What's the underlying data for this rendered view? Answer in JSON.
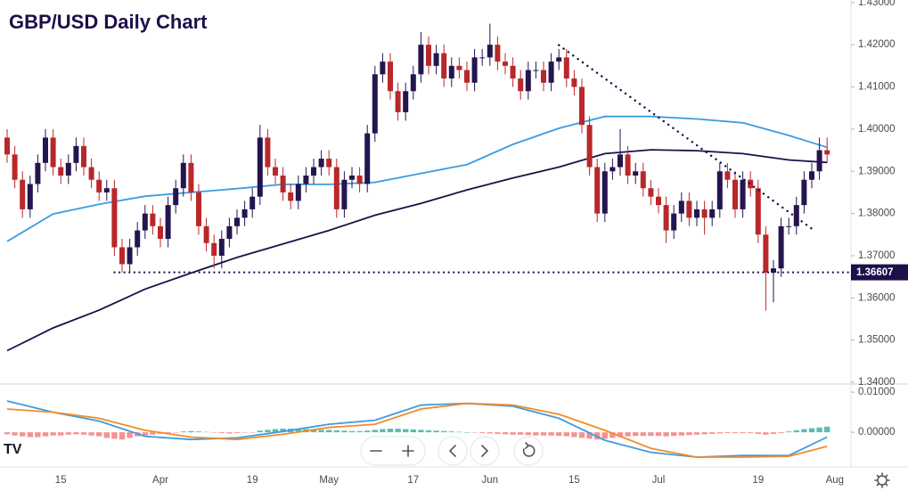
{
  "chart_data": [
    {
      "type": "candlestick",
      "title": "GBP/USD Daily Chart",
      "categories": [
        null,
        null,
        null,
        null,
        null,
        null,
        null,
        "15",
        null,
        null,
        null,
        null,
        null,
        null,
        null,
        null,
        null,
        null,
        null,
        null,
        "Apr",
        null,
        null,
        null,
        null,
        null,
        null,
        null,
        null,
        null,
        null,
        null,
        "19",
        null,
        null,
        null,
        null,
        null,
        null,
        null,
        null,
        null,
        "May",
        null,
        null,
        null,
        null,
        null,
        null,
        null,
        null,
        null,
        null,
        "17",
        null,
        null,
        null,
        null,
        null,
        null,
        null,
        null,
        null,
        "Jun",
        null,
        null,
        null,
        null,
        null,
        null,
        null,
        null,
        null,
        null,
        "15",
        null,
        null,
        null,
        null,
        null,
        null,
        null,
        null,
        null,
        null,
        "Jul",
        null,
        null,
        null,
        null,
        null,
        null,
        null,
        null,
        null,
        null,
        null,
        null,
        "19",
        null,
        null,
        null,
        null,
        null,
        null,
        null,
        null,
        null,
        "Aug"
      ],
      "open": [
        1.398,
        1.394,
        1.388,
        1.381,
        1.387,
        1.392,
        1.398,
        1.391,
        1.389,
        1.392,
        1.396,
        1.391,
        1.388,
        1.385,
        1.386,
        1.372,
        1.368,
        1.372,
        1.376,
        1.38,
        1.377,
        1.374,
        1.382,
        1.386,
        1.392,
        1.385,
        1.377,
        1.373,
        1.37,
        1.374,
        1.377,
        1.379,
        1.381,
        1.384,
        1.398,
        1.391,
        1.389,
        1.385,
        1.383,
        1.387,
        1.389,
        1.391,
        1.393,
        1.391,
        1.381,
        1.388,
        1.389,
        1.387,
        1.399,
        1.413,
        1.416,
        1.409,
        1.404,
        1.409,
        1.413,
        1.42,
        1.415,
        1.418,
        1.412,
        1.415,
        1.414,
        1.411,
        1.417,
        1.417,
        1.42,
        1.416,
        1.415,
        1.412,
        1.409,
        1.414,
        1.414,
        1.411,
        1.416,
        1.417,
        1.412,
        1.41,
        1.401,
        1.391,
        1.38,
        1.39,
        1.391,
        1.394,
        1.389,
        1.39,
        1.386,
        1.384,
        1.382,
        1.376,
        1.38,
        1.383,
        1.379,
        1.381,
        1.379,
        1.381,
        1.39,
        1.388,
        1.381,
        1.388,
        1.386,
        1.375,
        1.366,
        1.367,
        1.377,
        1.377,
        1.382,
        1.388,
        1.39,
        1.395,
        null
      ],
      "high": [
        1.4,
        1.396,
        1.39,
        1.389,
        1.394,
        1.4,
        1.4,
        1.393,
        1.394,
        1.398,
        1.398,
        1.393,
        1.39,
        1.388,
        1.388,
        1.374,
        1.374,
        1.378,
        1.382,
        1.382,
        1.379,
        1.384,
        1.388,
        1.394,
        1.394,
        1.387,
        1.379,
        1.375,
        1.376,
        1.379,
        1.381,
        1.383,
        1.386,
        1.401,
        1.4,
        1.393,
        1.391,
        1.387,
        1.389,
        1.391,
        1.393,
        1.395,
        1.395,
        1.393,
        1.39,
        1.391,
        1.391,
        1.401,
        1.415,
        1.418,
        1.418,
        1.411,
        1.411,
        1.415,
        1.423,
        1.422,
        1.42,
        1.42,
        1.417,
        1.417,
        1.416,
        1.419,
        1.419,
        1.425,
        1.422,
        1.418,
        1.417,
        1.414,
        1.416,
        1.416,
        1.416,
        1.418,
        1.419,
        1.419,
        1.414,
        1.412,
        1.403,
        1.393,
        1.392,
        1.393,
        1.4,
        1.396,
        1.392,
        1.392,
        1.388,
        1.386,
        1.384,
        1.382,
        1.385,
        1.385,
        1.383,
        1.383,
        1.383,
        1.392,
        1.392,
        1.39,
        1.39,
        1.39,
        1.388,
        1.377,
        1.369,
        1.379,
        1.379,
        1.384,
        1.39,
        1.392,
        1.398,
        1.398,
        null
      ],
      "low": [
        1.392,
        1.386,
        1.379,
        1.379,
        1.385,
        1.39,
        1.389,
        1.387,
        1.387,
        1.39,
        1.389,
        1.386,
        1.383,
        1.383,
        1.37,
        1.366,
        1.366,
        1.37,
        1.374,
        1.375,
        1.372,
        1.372,
        1.38,
        1.384,
        1.383,
        1.375,
        1.371,
        1.367,
        1.367,
        1.372,
        1.375,
        1.377,
        1.379,
        1.382,
        1.389,
        1.387,
        1.383,
        1.381,
        1.381,
        1.385,
        1.387,
        1.389,
        1.389,
        1.379,
        1.379,
        1.386,
        1.385,
        1.385,
        1.397,
        1.411,
        1.407,
        1.402,
        1.402,
        1.407,
        1.411,
        1.413,
        1.413,
        1.41,
        1.41,
        1.412,
        1.409,
        1.409,
        1.415,
        1.415,
        1.414,
        1.413,
        1.41,
        1.407,
        1.407,
        1.412,
        1.409,
        1.409,
        1.414,
        1.41,
        1.408,
        1.399,
        1.389,
        1.378,
        1.378,
        1.388,
        1.389,
        1.387,
        1.387,
        1.384,
        1.382,
        1.38,
        1.373,
        1.374,
        1.378,
        1.377,
        1.377,
        1.375,
        1.377,
        1.379,
        1.386,
        1.379,
        1.379,
        1.384,
        1.373,
        1.357,
        1.359,
        1.365,
        1.375,
        1.375,
        1.38,
        1.386,
        1.388,
        1.392,
        null
      ],
      "close": [
        1.394,
        1.388,
        1.381,
        1.387,
        1.392,
        1.398,
        1.391,
        1.389,
        1.392,
        1.396,
        1.391,
        1.388,
        1.385,
        1.386,
        1.372,
        1.368,
        1.372,
        1.376,
        1.38,
        1.377,
        1.374,
        1.382,
        1.386,
        1.392,
        1.385,
        1.377,
        1.373,
        1.37,
        1.374,
        1.377,
        1.379,
        1.381,
        1.384,
        1.398,
        1.391,
        1.389,
        1.385,
        1.383,
        1.387,
        1.389,
        1.391,
        1.393,
        1.391,
        1.381,
        1.388,
        1.389,
        1.387,
        1.399,
        1.413,
        1.416,
        1.409,
        1.404,
        1.409,
        1.413,
        1.42,
        1.415,
        1.418,
        1.412,
        1.415,
        1.414,
        1.411,
        1.417,
        1.417,
        1.42,
        1.416,
        1.415,
        1.412,
        1.409,
        1.414,
        1.414,
        1.411,
        1.416,
        1.417,
        1.412,
        1.41,
        1.401,
        1.391,
        1.38,
        1.39,
        1.391,
        1.394,
        1.389,
        1.39,
        1.386,
        1.384,
        1.382,
        1.376,
        1.38,
        1.383,
        1.379,
        1.381,
        1.379,
        1.381,
        1.39,
        1.388,
        1.381,
        1.388,
        1.386,
        1.375,
        1.366,
        1.367,
        1.377,
        1.377,
        1.382,
        1.388,
        1.39,
        1.395,
        1.394,
        null
      ],
      "up_color": "#24154f",
      "down_color": "#b8282a",
      "series": [
        {
          "color": "#3d9be0",
          "x": [
            0,
            6,
            12,
            18,
            24,
            30,
            36,
            42,
            48,
            54,
            60,
            66,
            72,
            78,
            84,
            90,
            96,
            102,
            107
          ],
          "values": [
            1.3734,
            1.3799,
            1.3822,
            1.3841,
            1.385,
            1.3859,
            1.3869,
            1.3869,
            1.3874,
            1.3895,
            1.3916,
            1.3964,
            1.4002,
            1.403,
            1.403,
            1.4024,
            1.4015,
            1.3985,
            1.3957
          ]
        },
        {
          "color": "#1e0f4a",
          "x": [
            0,
            6,
            12,
            18,
            24,
            30,
            36,
            42,
            48,
            54,
            60,
            66,
            72,
            78,
            84,
            90,
            96,
            102,
            107
          ],
          "values": [
            1.3475,
            1.3529,
            1.3571,
            1.3621,
            1.3659,
            1.3696,
            1.3728,
            1.376,
            1.3796,
            1.3824,
            1.3856,
            1.3884,
            1.391,
            1.3942,
            1.3951,
            1.3949,
            1.3942,
            1.3927,
            1.3921
          ]
        }
      ],
      "support": {
        "value": 1.36607,
        "start": 14
      },
      "trendline": {
        "x": [
          72,
          105
        ],
        "y": [
          1.4199,
          1.3764
        ]
      },
      "ylim": [
        1.3398,
        1.4306
      ],
      "yticks": [
        {
          "value": 1.43,
          "label": "1.43000"
        },
        {
          "value": 1.42,
          "label": "1.42000"
        },
        {
          "value": 1.41,
          "label": "1.41000"
        },
        {
          "value": 1.4,
          "label": "1.40000"
        },
        {
          "value": 1.39,
          "label": "1.39000"
        },
        {
          "value": 1.38,
          "label": "1.38000"
        },
        {
          "value": 1.37,
          "label": "1.37000"
        },
        {
          "value": 1.36,
          "label": "1.36000"
        },
        {
          "value": 1.35,
          "label": "1.35000"
        },
        {
          "value": 1.34,
          "label": "1.34000"
        }
      ]
    },
    {
      "type": "macd",
      "histogram": [
        -0.0005,
        -0.0008,
        -0.001,
        -0.0012,
        -0.0012,
        -0.001,
        -0.0008,
        -0.0008,
        -0.0006,
        -0.0005,
        -0.0006,
        -0.0008,
        -0.001,
        -0.0014,
        -0.0016,
        -0.0018,
        -0.0014,
        -0.001,
        -0.0008,
        -0.0006,
        -0.0004,
        -0.0002,
        -0.0001,
        0.0002,
        0.0003,
        0.0002,
        0.0001,
        -0.0001,
        -0.0002,
        -0.0003,
        -0.0002,
        -0.0001,
        -0.0001,
        0.0004,
        0.0006,
        0.0008,
        0.0009,
        0.0009,
        0.0008,
        0.0008,
        0.0007,
        0.0006,
        0.0006,
        0.0005,
        0.0004,
        0.0003,
        0.0003,
        0.0004,
        0.0006,
        0.0008,
        0.0009,
        0.0009,
        0.0008,
        0.0007,
        0.0006,
        0.0005,
        0.0004,
        0.0003,
        0.0002,
        0.0001,
        0,
        -0.0001,
        -0.0002,
        -0.0003,
        -0.0004,
        -0.0005,
        -0.0006,
        -0.0006,
        -0.0007,
        -0.0008,
        -0.0008,
        -0.0008,
        -0.0009,
        -0.001,
        -0.0012,
        -0.0014,
        -0.0016,
        -0.0018,
        -0.0016,
        -0.0014,
        -0.0012,
        -0.001,
        -0.0009,
        -0.0009,
        -0.0009,
        -0.0009,
        -0.001,
        -0.0009,
        -0.0008,
        -0.0007,
        -0.0006,
        -0.0005,
        -0.0004,
        -0.0003,
        -0.0002,
        -0.0002,
        -0.0002,
        -0.0002,
        -0.0004,
        -0.0006,
        -0.0004,
        -0.0002,
        0.0002,
        0.0005,
        0.0008,
        0.001,
        0.0012,
        0.0014,
        null
      ],
      "up_color": "#26a69a",
      "down_color": "#ef6f6c",
      "series": [
        {
          "color": "#3d9be0",
          "x": [
            0,
            6,
            12,
            18,
            24,
            30,
            36,
            42,
            48,
            54,
            60,
            66,
            72,
            78,
            84,
            90,
            96,
            102,
            107
          ],
          "values": [
            0.0078,
            0.005,
            0.0028,
            -0.001,
            -0.0018,
            -0.0014,
            0.0002,
            0.002,
            0.003,
            0.0068,
            0.0072,
            0.0065,
            0.0035,
            -0.002,
            -0.005,
            -0.0062,
            -0.0058,
            -0.0058,
            -0.0012
          ]
        },
        {
          "color": "#f28c28",
          "x": [
            0,
            6,
            12,
            18,
            24,
            30,
            36,
            42,
            48,
            54,
            60,
            66,
            72,
            78,
            84,
            90,
            96,
            102,
            107
          ],
          "values": [
            0.0058,
            0.005,
            0.0035,
            0.0005,
            -0.0012,
            -0.0018,
            -0.0005,
            0.0012,
            0.002,
            0.0058,
            0.0072,
            0.0068,
            0.0045,
            0.0005,
            -0.004,
            -0.0062,
            -0.0062,
            -0.006,
            -0.0035
          ]
        }
      ],
      "ylim": [
        -0.0082,
        0.0118
      ],
      "yticks": [
        {
          "value": 0.01,
          "label": "0.01000"
        },
        {
          "value": 0,
          "label": "0.00000"
        }
      ]
    }
  ]
}
